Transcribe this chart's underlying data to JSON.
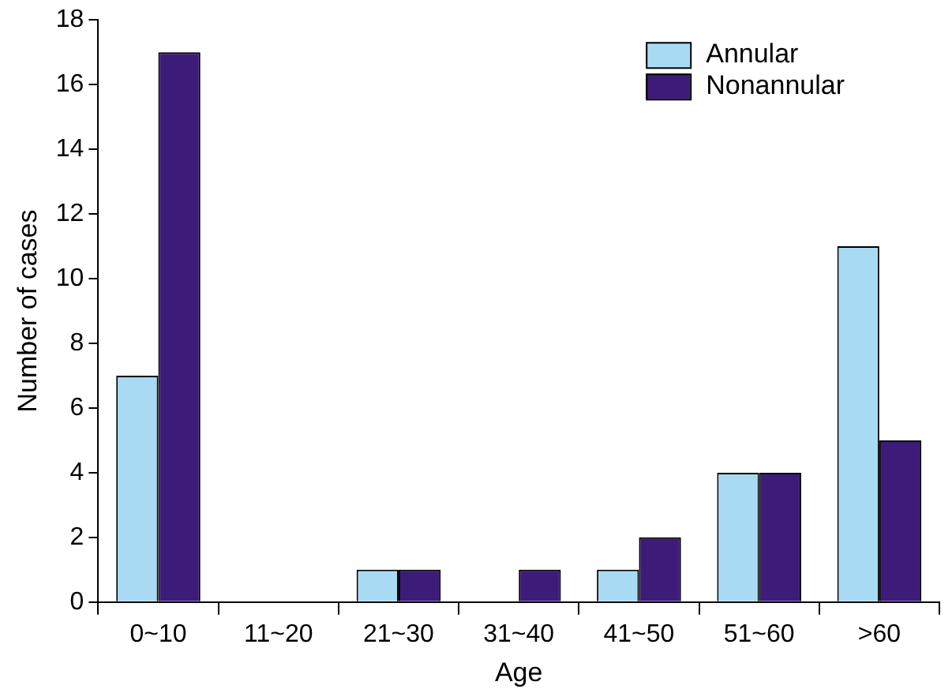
{
  "chart_data": {
    "type": "bar",
    "xlabel": "Age",
    "ylabel": "Number of cases",
    "categories": [
      "0~10",
      "11~20",
      "21~30",
      "31~40",
      "41~50",
      "51~60",
      ">60"
    ],
    "series": [
      {
        "name": "Annular",
        "color": "#a9daf3",
        "values": [
          7,
          0,
          1,
          0,
          1,
          4,
          11
        ]
      },
      {
        "name": "Nonannular",
        "color": "#3d1c79",
        "values": [
          17,
          0,
          1,
          1,
          2,
          4,
          5
        ]
      }
    ],
    "ylim": [
      0,
      18
    ],
    "yticks": [
      0,
      2,
      4,
      6,
      8,
      10,
      12,
      14,
      16,
      18
    ],
    "grid": false,
    "legend": "top right"
  }
}
